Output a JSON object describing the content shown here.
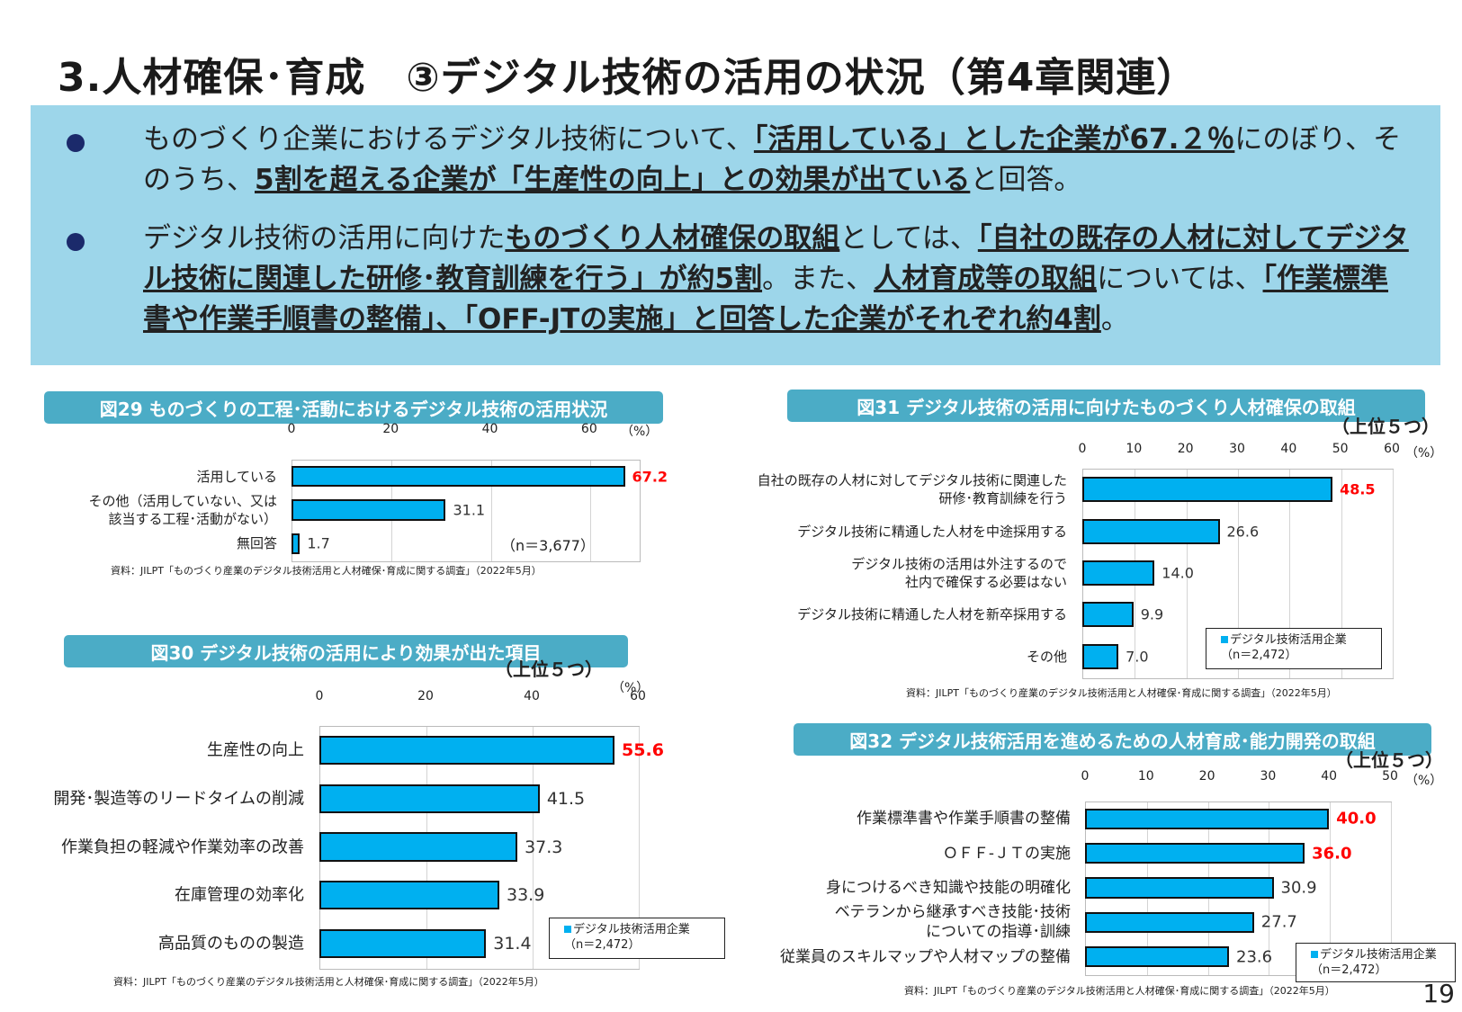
{
  "title": "3.人材確保･育成　③デジタル技術の活用の状況（第4章関連）",
  "bullets": [
    {
      "segments": [
        {
          "text": "ものづくり企業におけるデジタル技術について、",
          "strong": false
        },
        {
          "text": "「活用している」とした企業が67.２％",
          "strong": true
        },
        {
          "text": "にのぼり、そのうち、",
          "strong": false
        },
        {
          "text": "5割を超える企業が「生産性の向上」との効果が出ている",
          "strong": true
        },
        {
          "text": "と回答。",
          "strong": false
        }
      ]
    },
    {
      "segments": [
        {
          "text": "デジタル技術の活用に向けた",
          "strong": false
        },
        {
          "text": "ものづくり人材確保の取組",
          "strong": true
        },
        {
          "text": "としては、",
          "strong": false
        },
        {
          "text": "「自社の既存の人材に対してデジタル技術に関連した研修･教育訓練を行う」が約5割",
          "strong": true
        },
        {
          "text": "。また、",
          "strong": false
        },
        {
          "text": "人材育成等の取組",
          "strong": true
        },
        {
          "text": "については、",
          "strong": false
        },
        {
          "text": "「作業標準書や作業手順書の整備」、「OFF-JTの実施」と回答した企業がそれぞれ約4割",
          "strong": true
        },
        {
          "text": "。",
          "strong": false
        }
      ]
    }
  ],
  "page_number": "19",
  "colors": {
    "bar": "#00b0f0",
    "header": "#4bacc6",
    "summary_bg": "#9dd6ea",
    "highlight": "#ff0000"
  },
  "chart_data": [
    {
      "type": "bar",
      "title": "図29  ものづくりの工程･活動におけるデジタル技術の活用状況",
      "xlim": [
        0,
        70
      ],
      "ticks": [
        "0",
        "20",
        "40",
        "60"
      ],
      "tick_values": [
        0,
        20,
        40,
        60
      ],
      "unit": "（%）",
      "categories": [
        "活用している",
        "その他（活用していない、又は\n該当する工程･活動がない）",
        "無回答"
      ],
      "values": [
        67.2,
        31.1,
        1.7
      ],
      "value_labels": [
        "67.2",
        "31.1",
        "1.7"
      ],
      "highlight": [
        0
      ],
      "note": "（n＝3,677）",
      "top5": "",
      "legend": null,
      "source": "資料：JILPT「ものづくり産業のデジタル技術活用と人材確保･育成に関する調査」（2022年5月）"
    },
    {
      "type": "bar",
      "title": "図30  デジタル技術の活用により効果が出た項目",
      "xlim": [
        0,
        60
      ],
      "ticks": [
        "0",
        "20",
        "40",
        "60"
      ],
      "tick_values": [
        0,
        20,
        40,
        60
      ],
      "unit": "（%）",
      "categories": [
        "生産性の向上",
        "開発･製造等のリードタイムの削減",
        "作業負担の軽減や作業効率の改善",
        "在庫管理の効率化",
        "高品質のものの製造"
      ],
      "values": [
        55.6,
        41.5,
        37.3,
        33.9,
        31.4
      ],
      "value_labels": [
        "55.6",
        "41.5",
        "37.3",
        "33.9",
        "31.4"
      ],
      "highlight": [
        0
      ],
      "note": "",
      "top5": "（上位５つ）",
      "legend": {
        "series": "デジタル技術活用企業",
        "n": "（n＝2,472）"
      },
      "source": "資料：JILPT「ものづくり産業のデジタル技術活用と人材確保･育成に関する調査」（2022年5月）"
    },
    {
      "type": "bar",
      "title": "図31  デジタル技術の活用に向けたものづくり人材確保の取組",
      "xlim": [
        0,
        60
      ],
      "ticks": [
        "0",
        "10",
        "20",
        "30",
        "40",
        "50",
        "60"
      ],
      "tick_values": [
        0,
        10,
        20,
        30,
        40,
        50,
        60
      ],
      "unit": "（%）",
      "categories": [
        "自社の既存の人材に対してデジタル技術に関連した\n研修･教育訓練を行う",
        "デジタル技術に精通した人材を中途採用する",
        "デジタル技術の活用は外注するので\n社内で確保する必要はない",
        "デジタル技術に精通した人材を新卒採用する",
        "その他"
      ],
      "values": [
        48.5,
        26.6,
        14.0,
        9.9,
        7.0
      ],
      "value_labels": [
        "48.5",
        "26.6",
        "14.0",
        "9.9",
        "7.0"
      ],
      "highlight": [
        0
      ],
      "note": "",
      "top5": "（上位５つ）",
      "legend": {
        "series": "デジタル技術活用企業",
        "n": "（n＝2,472）"
      },
      "source": "資料：JILPT「ものづくり産業のデジタル技術活用と人材確保･育成に関する調査」（2022年5月）"
    },
    {
      "type": "bar",
      "title": "図32  デジタル技術活用を進めるための人材育成･能力開発の取組",
      "xlim": [
        0,
        50
      ],
      "ticks": [
        "0",
        "10",
        "20",
        "30",
        "40",
        "50"
      ],
      "tick_values": [
        0,
        10,
        20,
        30,
        40,
        50
      ],
      "unit": "（%）",
      "categories": [
        "作業標準書や作業手順書の整備",
        "ＯＦＦ-ＪＴの実施",
        "身につけるべき知識や技能の明確化",
        "ベテランから継承すべき技能･技術\nについての指導･訓練",
        "従業員のスキルマップや人材マップの整備"
      ],
      "values": [
        40.0,
        36.0,
        30.9,
        27.7,
        23.6
      ],
      "value_labels": [
        "40.0",
        "36.0",
        "30.9",
        "27.7",
        "23.6"
      ],
      "highlight": [
        0,
        1
      ],
      "note": "",
      "top5": "（上位５つ）",
      "legend": {
        "series": "デジタル技術活用企業",
        "n": "（n＝2,472）"
      },
      "source": "資料：JILPT「ものづくり産業のデジタル技術活用と人材確保･育成に関する調査」（2022年5月）"
    }
  ]
}
